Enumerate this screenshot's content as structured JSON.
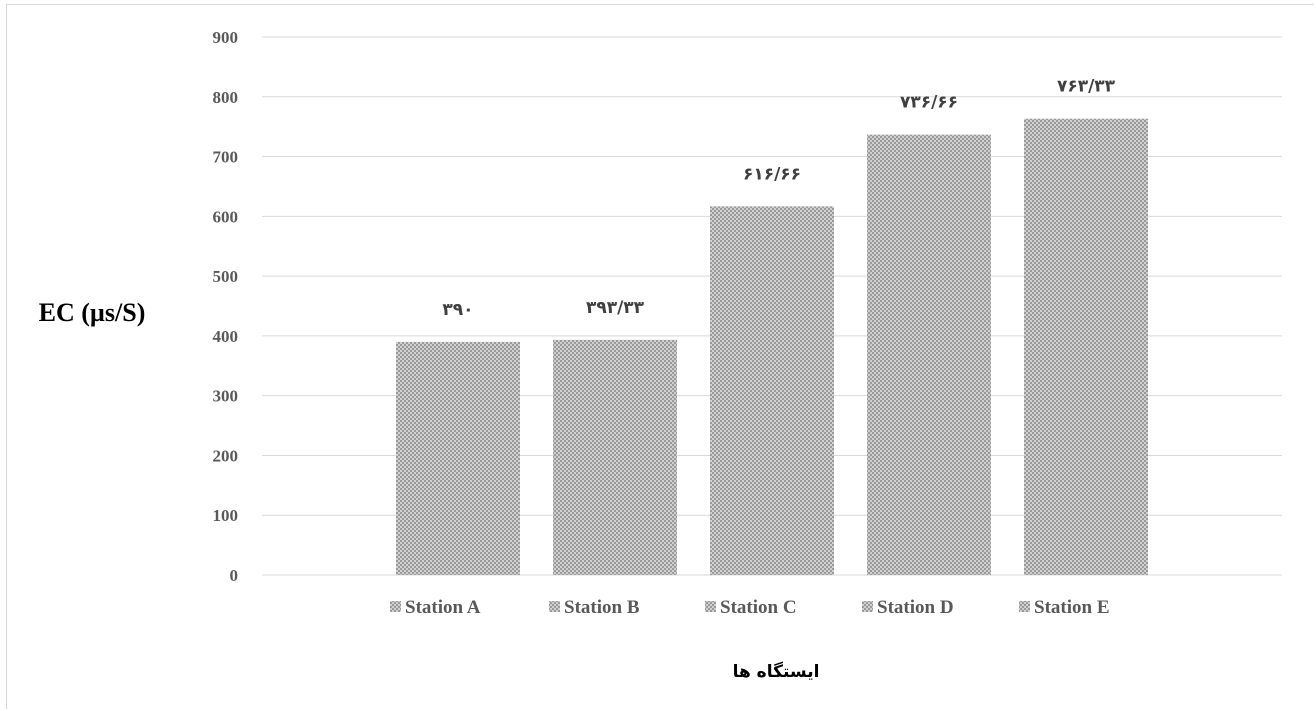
{
  "chart_data": {
    "type": "bar",
    "categories": [
      "Station A",
      "Station B",
      "Station C",
      "Station D",
      "Station E"
    ],
    "values": [
      390,
      393.33,
      616.66,
      736.66,
      763.33
    ],
    "data_labels": [
      "۳۹۰",
      "۳۹۳/۳۳",
      "۶۱۶/۶۶",
      "۷۳۶/۶۶",
      "۷۶۳/۳۳"
    ],
    "ylabel": "EC (µs/S)",
    "xlabel": "ایستگاه ها",
    "ylim": [
      0,
      900
    ],
    "yticks": [
      0,
      100,
      200,
      300,
      400,
      500,
      600,
      700,
      800,
      900
    ],
    "grid": true,
    "legend": "bottom",
    "legend_entries": [
      "Station A",
      "Station B",
      "Station C",
      "Station D",
      "Station E"
    ],
    "colors": {
      "bar": "#c8c8c8",
      "bar_pattern": "#9a9a9a",
      "grid": "#d9d9d9",
      "tick_text": "#595959"
    }
  }
}
